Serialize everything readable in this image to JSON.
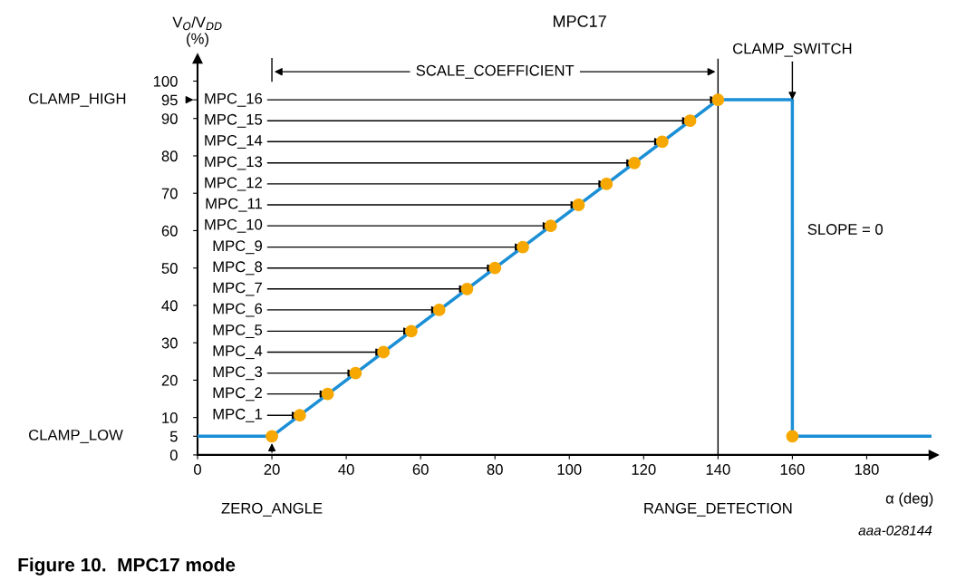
{
  "chart_data": {
    "type": "line",
    "title": "MPC17",
    "xlabel": "α (deg)",
    "ylabel": "V$_{O}$/V$_{DD}$\n(%)",
    "xlim": [
      0,
      198
    ],
    "ylim": [
      0,
      106
    ],
    "xticks": [
      0,
      20,
      40,
      60,
      80,
      100,
      120,
      140,
      160,
      180
    ],
    "yticks": [
      0,
      5,
      10,
      20,
      30,
      40,
      50,
      60,
      70,
      80,
      90,
      95,
      100
    ],
    "grid": false,
    "series": [
      {
        "color": "#1b8fd6",
        "x": [
          0,
          20,
          140,
          160,
          160,
          197
        ],
        "values": [
          5,
          5,
          95,
          95,
          5,
          5
        ]
      },
      {
        "type": "scatter",
        "color": "#f7a800",
        "marker": "circle",
        "x": [
          20,
          27.5,
          35,
          42.5,
          50,
          57.5,
          65,
          72.5,
          80,
          87.5,
          95,
          102.5,
          110,
          117.5,
          125,
          132.5,
          140,
          160
        ],
        "values": [
          5,
          10.6,
          16.3,
          21.9,
          27.5,
          33.1,
          38.8,
          44.4,
          50,
          55.6,
          61.3,
          66.9,
          72.5,
          78.1,
          83.8,
          89.4,
          95,
          5
        ]
      }
    ],
    "ref_lines": [
      {
        "axis": "x",
        "value": 140,
        "label": "RANGE_DETECTION",
        "color": "#000000"
      }
    ],
    "annotations": [
      {
        "text": "MPC_1",
        "x": 27.5,
        "y": 10.6
      },
      {
        "text": "MPC_2",
        "x": 35,
        "y": 16.3
      },
      {
        "text": "MPC_3",
        "x": 42.5,
        "y": 21.9
      },
      {
        "text": "MPC_4",
        "x": 50,
        "y": 27.5
      },
      {
        "text": "MPC_5",
        "x": 57.5,
        "y": 33.1
      },
      {
        "text": "MPC_6",
        "x": 65,
        "y": 38.8
      },
      {
        "text": "MPC_7",
        "x": 72.5,
        "y": 44.4
      },
      {
        "text": "MPC_8",
        "x": 80,
        "y": 50
      },
      {
        "text": "MPC_9",
        "x": 87.5,
        "y": 55.6
      },
      {
        "text": "MPC_10",
        "x": 95,
        "y": 61.3
      },
      {
        "text": "MPC_11",
        "x": 102.5,
        "y": 66.9
      },
      {
        "text": "MPC_12",
        "x": 110,
        "y": 72.5
      },
      {
        "text": "MPC_13",
        "x": 117.5,
        "y": 78.1
      },
      {
        "text": "MPC_14",
        "x": 125,
        "y": 83.8
      },
      {
        "text": "MPC_15",
        "x": 132.5,
        "y": 89.4
      },
      {
        "text": "MPC_16",
        "x": 140,
        "y": 95
      },
      "CLAMP_HIGH",
      "CLAMP_LOW",
      "ZERO_ANGLE",
      {
        "text": "CLAMP_SWITCH",
        "x": 160,
        "y": 95
      },
      "SCALE_COEFFICIENT",
      "SLOPE = 0",
      "aaa-028144",
      "Figure 10.  MPC17 mode"
    ]
  }
}
